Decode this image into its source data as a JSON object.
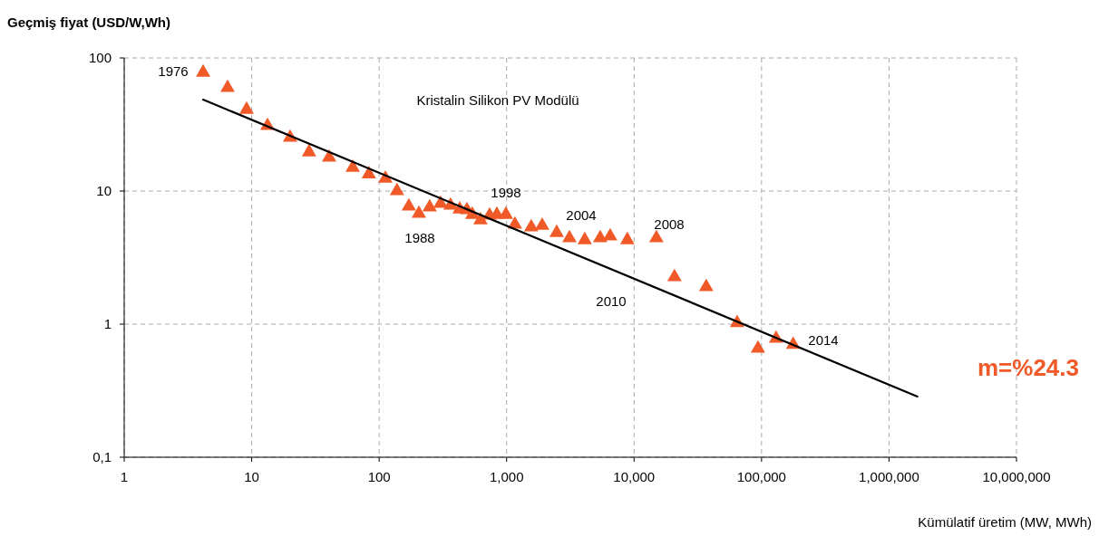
{
  "chart_data": {
    "type": "scatter",
    "title": "Kristalin Silikon PV Modülü",
    "xlabel": "Kümülatif üretim (MW, MWh)",
    "ylabel": "Geçmiş fiyat (USD/W,Wh)",
    "log": "xy",
    "grid": true,
    "xlim": [
      1,
      10000000
    ],
    "xticks": [
      1,
      10,
      100,
      {
        "value": 1000,
        "label": "1,000"
      },
      {
        "value": 10000,
        "label": "10,000"
      },
      {
        "value": 100000,
        "label": "100,000"
      },
      {
        "value": 1000000,
        "label": "1,000,000"
      },
      {
        "value": 10000000,
        "label": "10,000,000"
      }
    ],
    "ylim": [
      0.1,
      100
    ],
    "yticks": [
      {
        "value": 0.1,
        "label": "0,1"
      },
      1,
      10,
      100
    ],
    "series": [
      {
        "marker": "triangle",
        "color": "#f05a28",
        "x": [
          4.16,
          6.47,
          9.12,
          13.3,
          20,
          28.2,
          40.5,
          62,
          83,
          112,
          138,
          171,
          205,
          249,
          303,
          363,
          428,
          488,
          538,
          624,
          735,
          838,
          987,
          1162,
          1560,
          1900,
          2470,
          3110,
          4100,
          5420,
          6490,
          8850,
          14960,
          20750,
          36800,
          64300,
          93700,
          130000,
          177000
        ],
        "values": [
          77.8,
          59.7,
          40.9,
          30.9,
          25.2,
          19.6,
          17.9,
          15,
          13.4,
          12.4,
          10,
          7.66,
          6.76,
          7.55,
          8.04,
          7.8,
          7.3,
          7.2,
          6.65,
          6.05,
          6.55,
          6.65,
          6.65,
          5.6,
          5.35,
          5.5,
          4.86,
          4.43,
          4.29,
          4.43,
          4.57,
          4.29,
          4.43,
          2.26,
          1.9,
          1.02,
          0.655,
          0.78,
          0.7
        ]
      },
      {
        "type": "line",
        "marker": "none",
        "line_style": "solid",
        "color": "#000000",
        "x": [
          4.16,
          1670000
        ],
        "values": [
          48.6,
          0.286
        ]
      }
    ],
    "annotations": [
      "1976",
      "1988",
      "1998",
      "2004",
      "2008",
      "2010",
      "2014",
      "m=%24.3"
    ]
  }
}
